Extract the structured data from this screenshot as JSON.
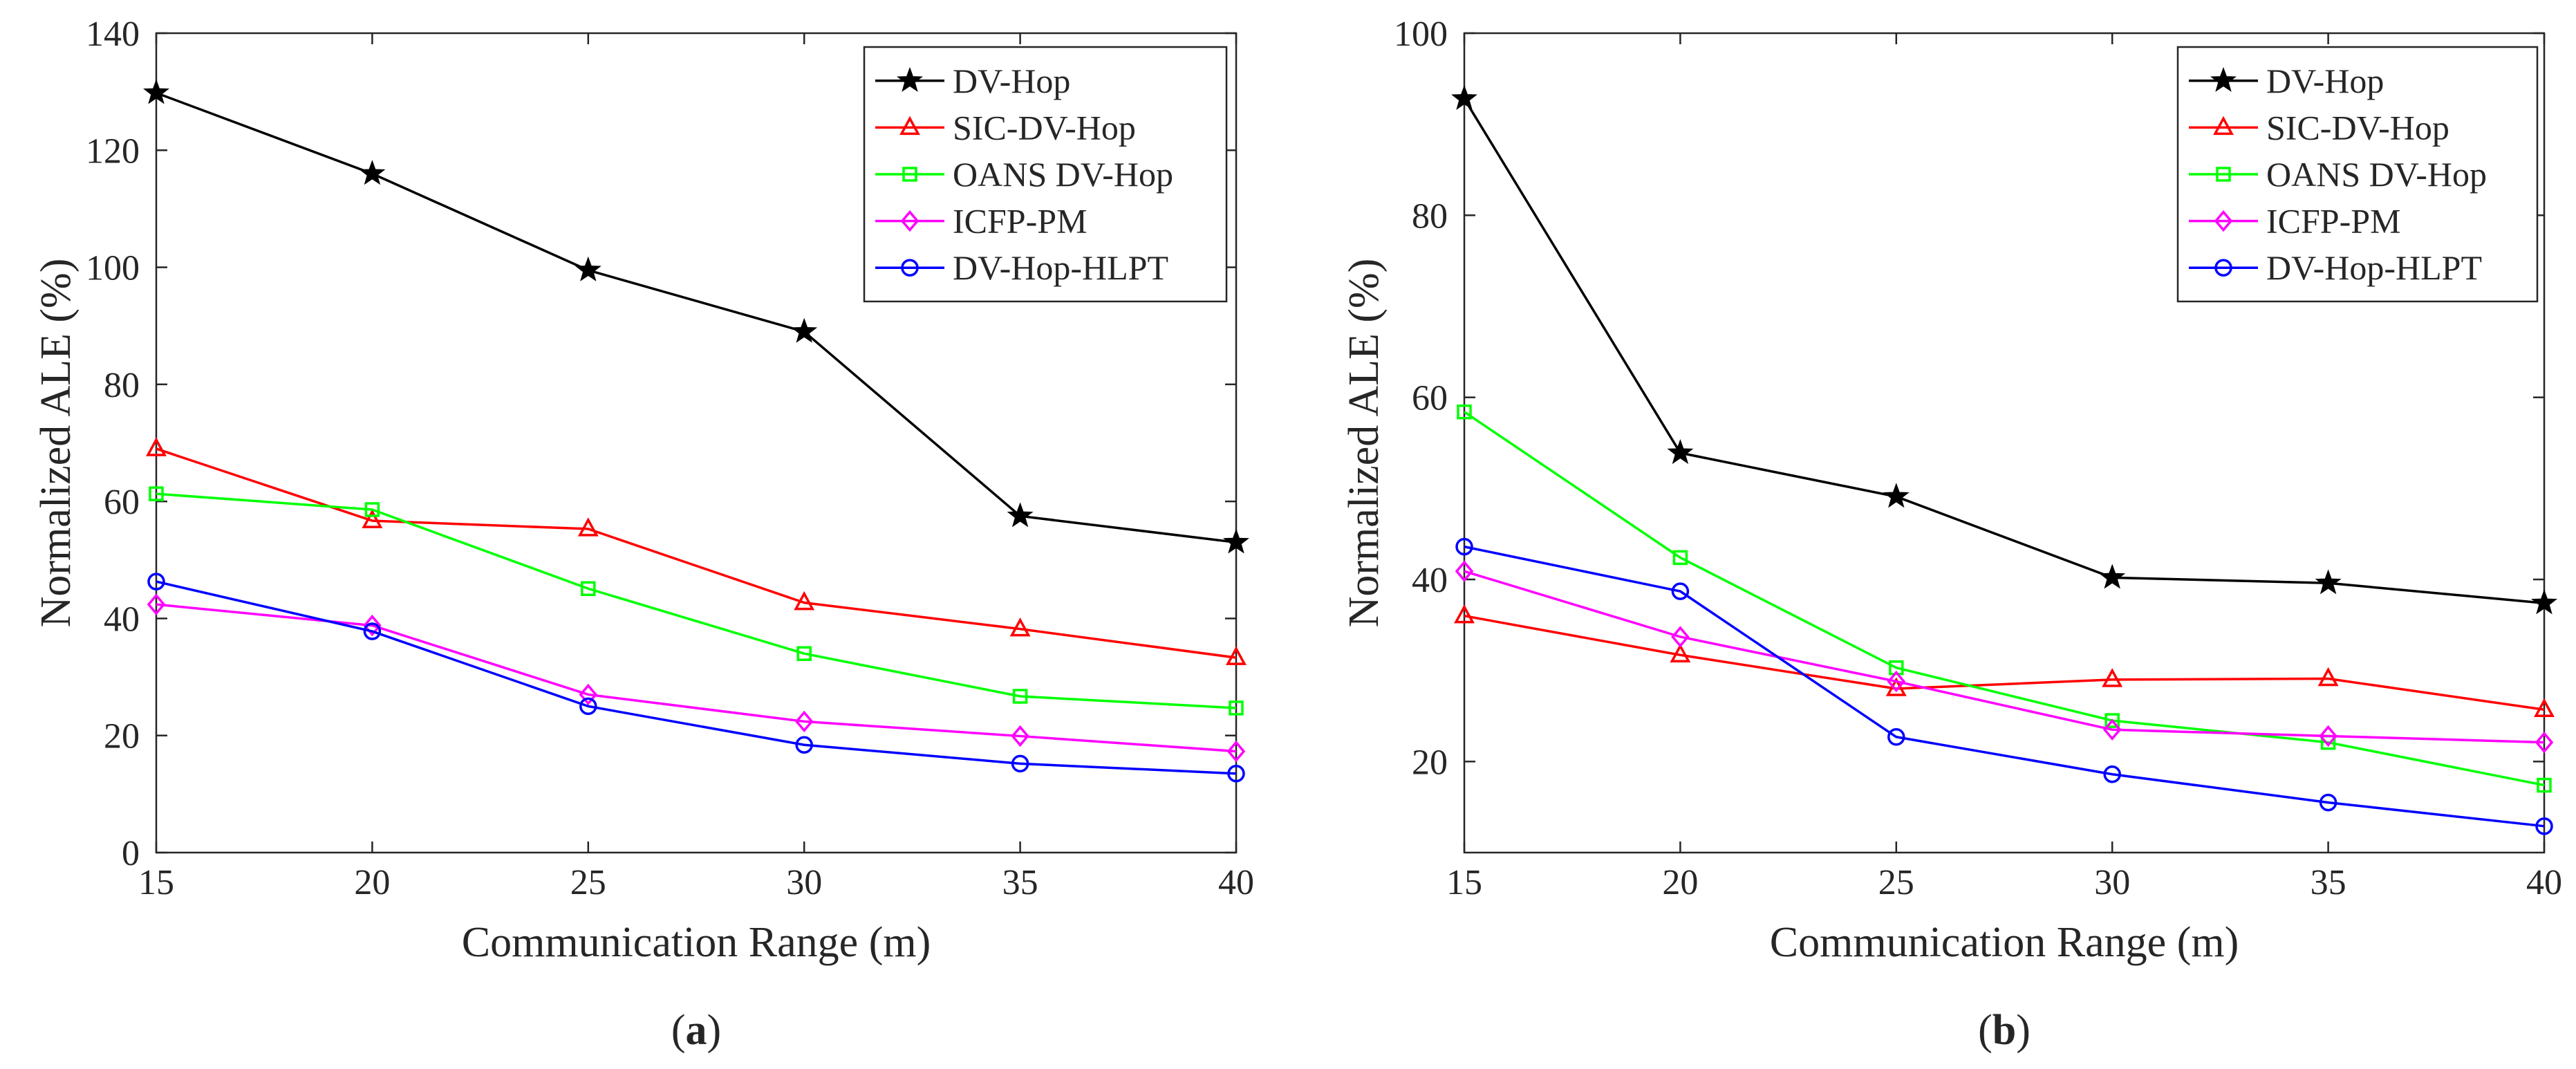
{
  "chart_data": [
    {
      "panel": "a",
      "label": "(a)",
      "type": "line",
      "xlabel": "Communication Range (m)",
      "ylabel": "Normalized ALE (%)",
      "x": [
        15,
        20,
        25,
        30,
        35,
        40
      ],
      "xticks": [
        15,
        20,
        25,
        30,
        35,
        40
      ],
      "xlim": [
        15,
        40
      ],
      "ylim": [
        0,
        140
      ],
      "yticks": [
        0,
        20,
        40,
        60,
        80,
        100,
        120,
        140
      ],
      "legend_position": "top-right",
      "grid": false,
      "series": [
        {
          "name": "DV-Hop",
          "color": "#000000",
          "marker": "star",
          "values": [
            129.8,
            116.0,
            99.5,
            89.0,
            57.5,
            53.0
          ]
        },
        {
          "name": "SIC-DV-Hop",
          "color": "#ff0000",
          "marker": "triangle",
          "values": [
            69.0,
            56.7,
            55.3,
            42.7,
            38.2,
            33.3
          ]
        },
        {
          "name": "OANS DV-Hop",
          "color": "#00ff00",
          "marker": "square",
          "values": [
            61.3,
            58.6,
            45.1,
            34.0,
            26.7,
            24.7
          ]
        },
        {
          "name": "ICFP-PM",
          "color": "#ff00ff",
          "marker": "diamond",
          "values": [
            42.4,
            38.8,
            27.0,
            22.4,
            19.9,
            17.3
          ]
        },
        {
          "name": "DV-Hop-HLPT",
          "color": "#0000ff",
          "marker": "circle",
          "values": [
            46.3,
            37.8,
            25.0,
            18.4,
            15.2,
            13.5
          ]
        }
      ]
    },
    {
      "panel": "b",
      "label": "(b)",
      "type": "line",
      "xlabel": "Communication Range (m)",
      "ylabel": "Normalized ALE (%)",
      "x": [
        15,
        20,
        25,
        30,
        35,
        40
      ],
      "xticks": [
        15,
        20,
        25,
        30,
        35,
        40
      ],
      "xlim": [
        15,
        40
      ],
      "ylim": [
        10,
        100
      ],
      "yticks": [
        20,
        40,
        60,
        80,
        100
      ],
      "legend_position": "top-right",
      "grid": false,
      "series": [
        {
          "name": "DV-Hop",
          "color": "#000000",
          "marker": "star",
          "values": [
            92.8,
            53.9,
            49.1,
            40.2,
            39.6,
            37.4
          ]
        },
        {
          "name": "SIC-DV-Hop",
          "color": "#ff0000",
          "marker": "triangle",
          "values": [
            36.0,
            31.7,
            28.0,
            29.0,
            29.1,
            25.7
          ]
        },
        {
          "name": "OANS DV-Hop",
          "color": "#00ff00",
          "marker": "square",
          "values": [
            58.4,
            42.4,
            30.3,
            24.5,
            22.1,
            17.4
          ]
        },
        {
          "name": "ICFP-PM",
          "color": "#ff00ff",
          "marker": "diamond",
          "values": [
            40.9,
            33.7,
            28.8,
            23.5,
            22.8,
            22.1
          ]
        },
        {
          "name": "DV-Hop-HLPT",
          "color": "#0000ff",
          "marker": "circle",
          "values": [
            43.6,
            38.7,
            22.7,
            18.6,
            15.5,
            12.9
          ]
        }
      ]
    }
  ]
}
